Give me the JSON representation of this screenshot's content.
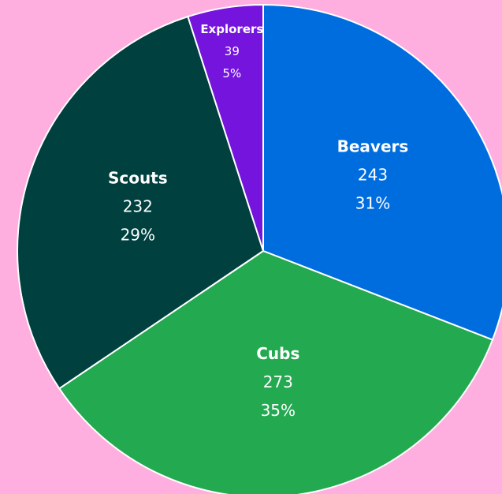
{
  "chart_data": {
    "type": "pie",
    "categories": [
      "Beavers",
      "Cubs",
      "Scouts",
      "Explorers"
    ],
    "values": [
      243,
      273,
      232,
      39
    ],
    "percent_labels": [
      "31%",
      "35%",
      "29%",
      "5%"
    ],
    "colors": [
      "#006ddf",
      "#23a950",
      "#00403f",
      "#7414dc"
    ],
    "start_angle": 0,
    "direction": "clockwise"
  }
}
